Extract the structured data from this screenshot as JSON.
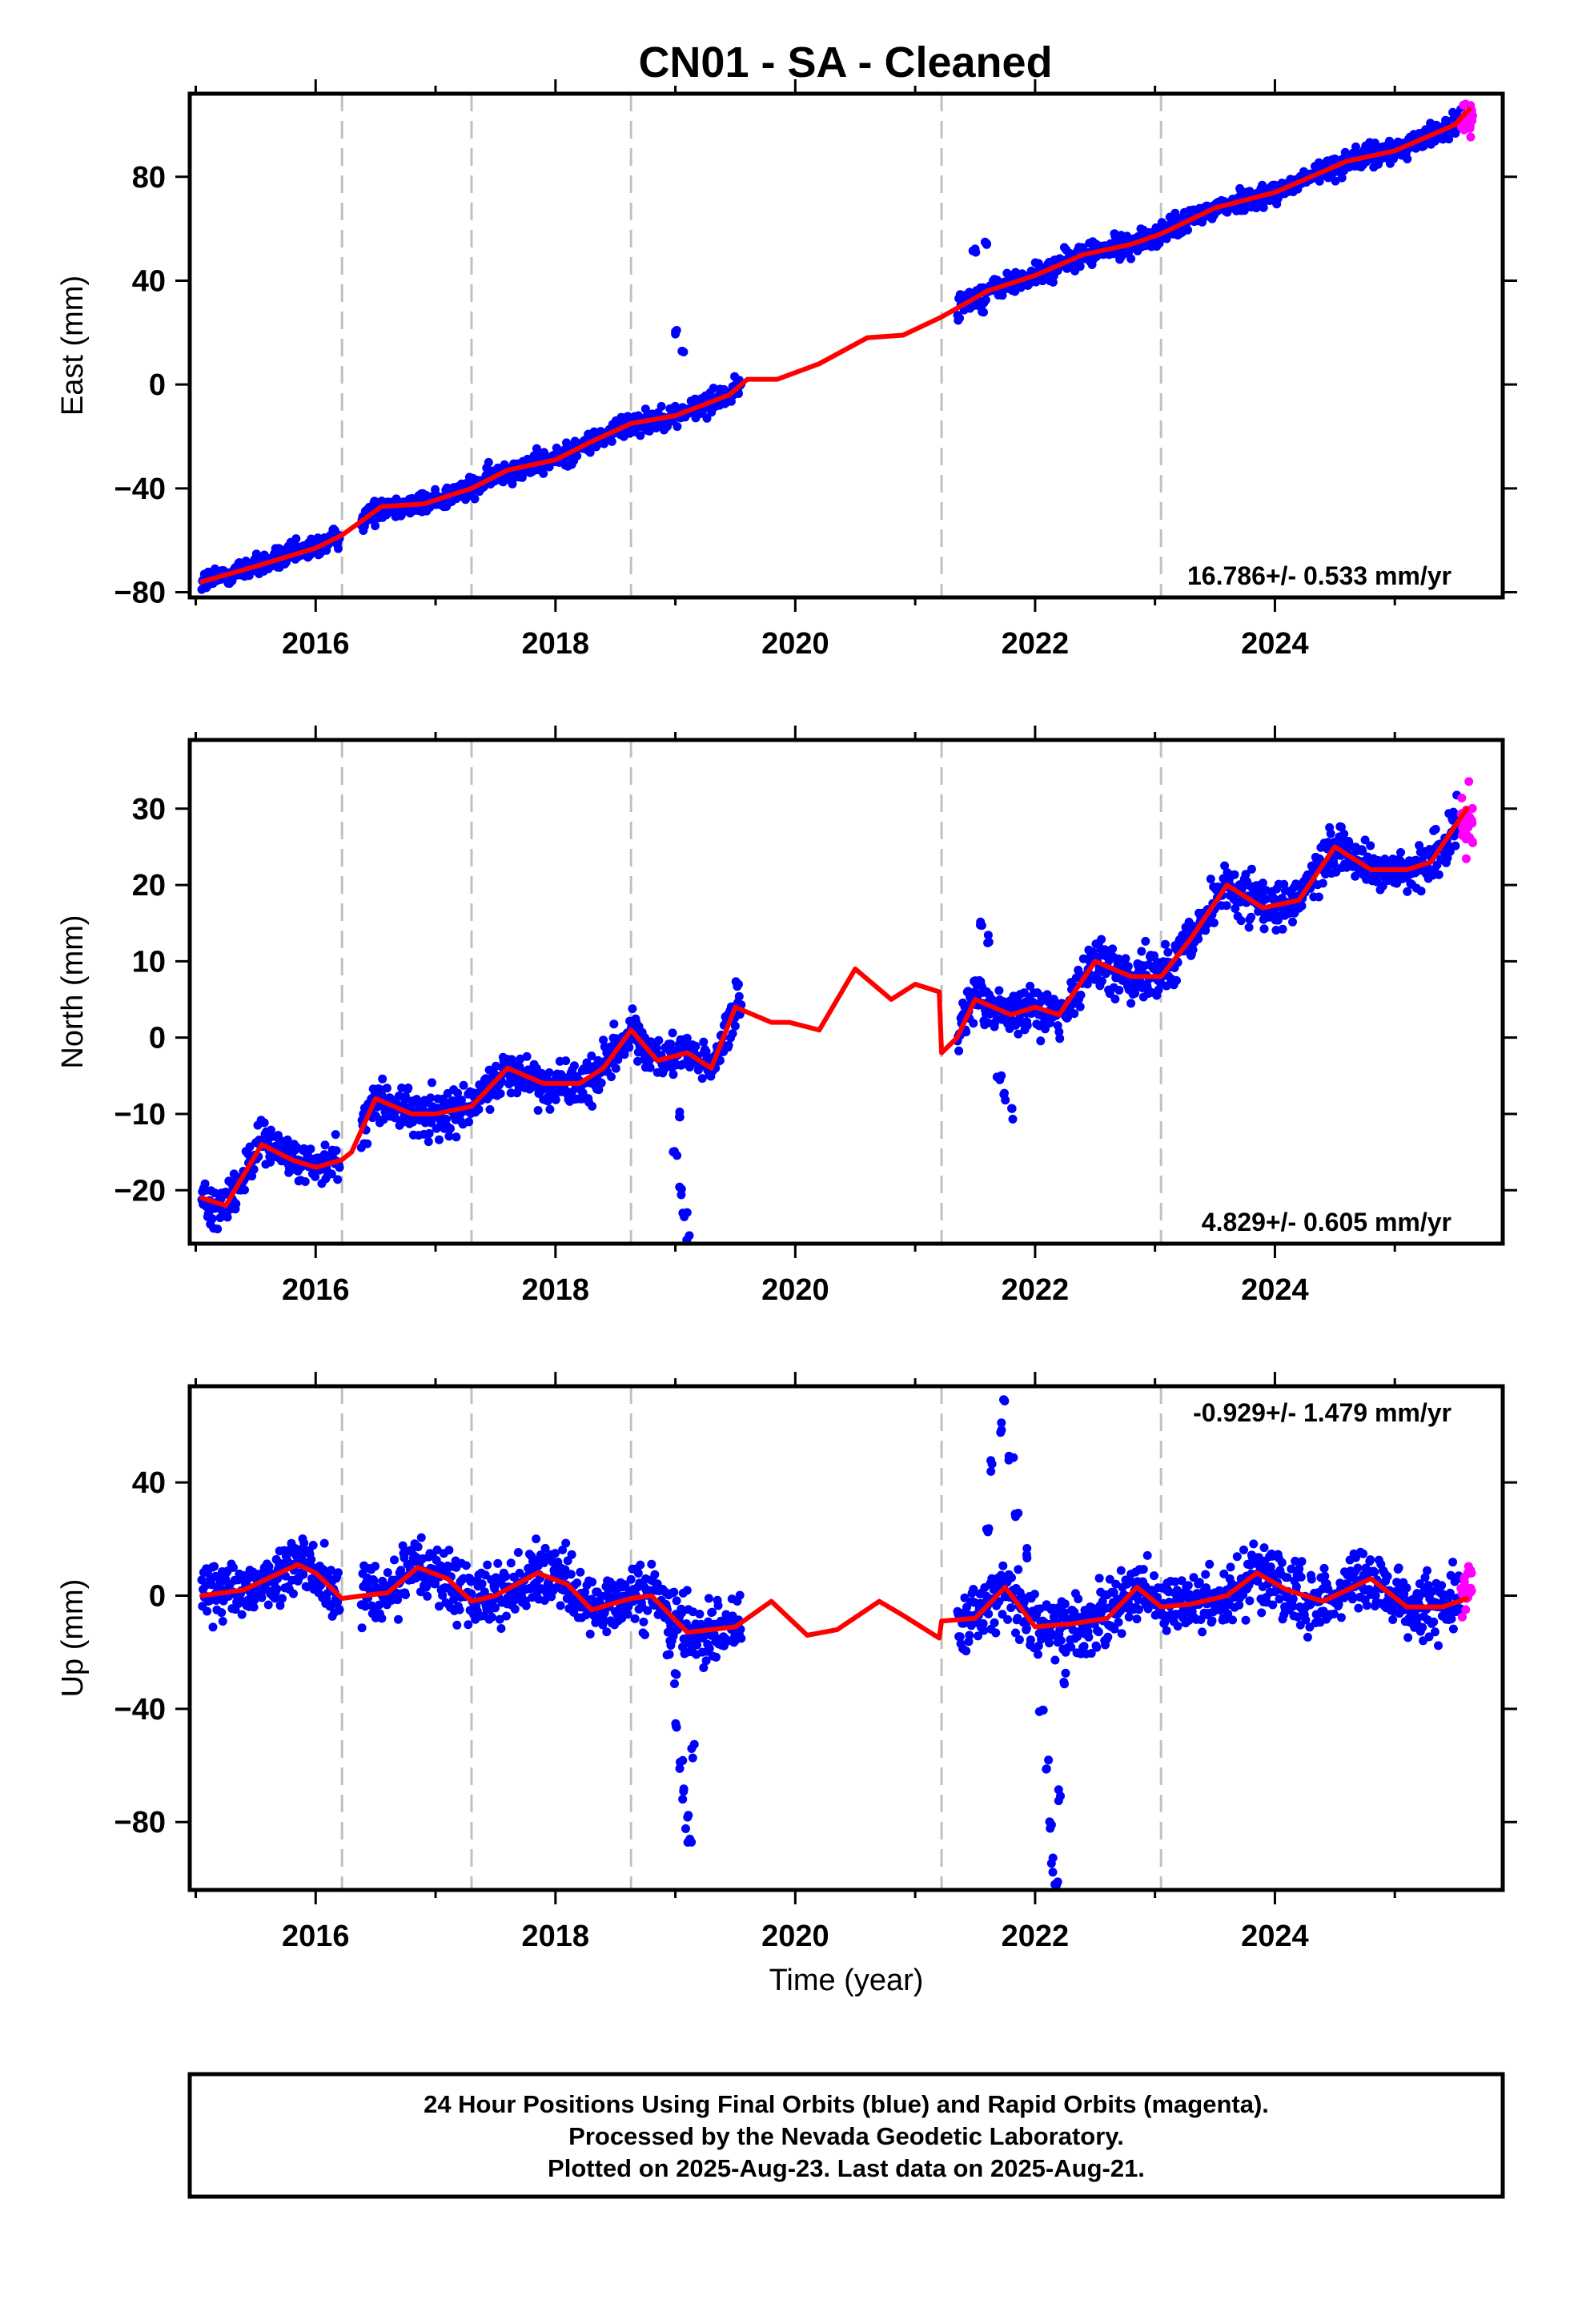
{
  "title": "CN01  - SA - Cleaned",
  "colors": {
    "final_orbits": "#0000ff",
    "rapid_orbits": "#ff00ff",
    "model": "#ff0000",
    "break_lines": "#c0c0c0"
  },
  "chart_data": [
    {
      "type": "scatter",
      "name": "east",
      "ylabel": "East (mm)",
      "xlabel": "",
      "xlim": [
        2014.95,
        2025.9
      ],
      "ylim": [
        -82,
        112
      ],
      "xticks": [
        2016,
        2018,
        2020,
        2022,
        2024
      ],
      "yticks": [
        -80,
        -40,
        0,
        40,
        80
      ],
      "rate_text": "16.786+/- 0.533 mm/yr",
      "rate_position": "bottom-right",
      "breaks": [
        2016.22,
        2017.3,
        2018.63,
        2021.22,
        2023.05
      ],
      "gaps": [
        [
          2016.2,
          2016.38
        ],
        [
          2019.55,
          2021.35
        ]
      ],
      "noise": 2.2,
      "model": [
        [
          2015.05,
          -76
        ],
        [
          2015.5,
          -70
        ],
        [
          2016.0,
          -63
        ],
        [
          2016.22,
          -58
        ],
        [
          2016.4,
          -52
        ],
        [
          2016.55,
          -47
        ],
        [
          2016.9,
          -46
        ],
        [
          2017.3,
          -40
        ],
        [
          2017.6,
          -33
        ],
        [
          2018.0,
          -29
        ],
        [
          2018.3,
          -22
        ],
        [
          2018.63,
          -15
        ],
        [
          2019.0,
          -12
        ],
        [
          2019.45,
          -4
        ],
        [
          2019.6,
          2
        ],
        [
          2019.85,
          2
        ],
        [
          2020.2,
          8
        ],
        [
          2020.6,
          18
        ],
        [
          2020.9,
          19
        ],
        [
          2021.22,
          26
        ],
        [
          2021.45,
          32
        ],
        [
          2021.6,
          36
        ],
        [
          2022.0,
          42
        ],
        [
          2022.4,
          50
        ],
        [
          2022.8,
          54
        ],
        [
          2023.05,
          58
        ],
        [
          2023.5,
          68
        ],
        [
          2024.0,
          74
        ],
        [
          2024.6,
          86
        ],
        [
          2025.0,
          90
        ],
        [
          2025.5,
          100
        ],
        [
          2025.62,
          106
        ]
      ],
      "spikes": [
        [
          2019.0,
          20
        ],
        [
          2019.05,
          12
        ],
        [
          2021.5,
          52
        ],
        [
          2021.6,
          54
        ],
        [
          2021.55,
          28
        ]
      ],
      "rapid": {
        "x0": 2025.55,
        "x1": 2025.65,
        "center": 102,
        "spread": 6
      }
    },
    {
      "type": "scatter",
      "name": "north",
      "ylabel": "North (mm)",
      "xlabel": "",
      "xlim": [
        2014.95,
        2025.9
      ],
      "ylim": [
        -27,
        39
      ],
      "xticks": [
        2016,
        2018,
        2020,
        2022,
        2024
      ],
      "yticks": [
        -20,
        -10,
        0,
        10,
        20,
        30
      ],
      "rate_text": "4.829+/- 0.605 mm/yr",
      "rate_position": "bottom-right",
      "breaks": [
        2016.22,
        2017.3,
        2018.63,
        2021.22,
        2023.05
      ],
      "gaps": [
        [
          2016.2,
          2016.38
        ],
        [
          2019.55,
          2021.35
        ]
      ],
      "noise": 1.5,
      "model": [
        [
          2015.05,
          -21
        ],
        [
          2015.25,
          -22
        ],
        [
          2015.55,
          -14
        ],
        [
          2015.8,
          -16
        ],
        [
          2016.0,
          -17
        ],
        [
          2016.22,
          -16
        ],
        [
          2016.3,
          -15
        ],
        [
          2016.5,
          -8
        ],
        [
          2016.8,
          -10
        ],
        [
          2017.0,
          -10
        ],
        [
          2017.3,
          -9
        ],
        [
          2017.6,
          -4
        ],
        [
          2017.9,
          -6
        ],
        [
          2018.2,
          -6
        ],
        [
          2018.4,
          -4
        ],
        [
          2018.63,
          1
        ],
        [
          2018.85,
          -3
        ],
        [
          2019.1,
          -2
        ],
        [
          2019.3,
          -4
        ],
        [
          2019.5,
          4
        ],
        [
          2019.8,
          2
        ],
        [
          2019.95,
          2
        ],
        [
          2020.2,
          1
        ],
        [
          2020.5,
          9
        ],
        [
          2020.8,
          5
        ],
        [
          2021.0,
          7
        ],
        [
          2021.2,
          6
        ],
        [
          2021.22,
          -2
        ],
        [
          2021.35,
          0
        ],
        [
          2021.5,
          5
        ],
        [
          2021.8,
          3
        ],
        [
          2022.0,
          4
        ],
        [
          2022.2,
          3
        ],
        [
          2022.5,
          10
        ],
        [
          2022.8,
          8
        ],
        [
          2023.05,
          8
        ],
        [
          2023.3,
          13
        ],
        [
          2023.6,
          20
        ],
        [
          2023.9,
          17
        ],
        [
          2024.2,
          18
        ],
        [
          2024.5,
          25
        ],
        [
          2024.8,
          22
        ],
        [
          2025.1,
          22
        ],
        [
          2025.3,
          23
        ],
        [
          2025.6,
          30
        ]
      ],
      "spikes": [
        [
          2019.05,
          -20
        ],
        [
          2019.08,
          -23
        ],
        [
          2019.1,
          -26
        ],
        [
          2019.0,
          -15
        ],
        [
          2019.03,
          -10
        ],
        [
          2021.55,
          15
        ],
        [
          2021.6,
          13
        ],
        [
          2021.7,
          -5
        ],
        [
          2021.75,
          -8
        ],
        [
          2021.8,
          -10
        ]
      ],
      "rapid": {
        "x0": 2025.55,
        "x1": 2025.65,
        "center": 28,
        "spread": 5
      }
    },
    {
      "type": "scatter",
      "name": "up",
      "ylabel": "Up (mm)",
      "xlabel": "Time (year)",
      "xlim": [
        2014.95,
        2025.9
      ],
      "ylim": [
        -104,
        74
      ],
      "xticks": [
        2016,
        2018,
        2020,
        2022,
        2024
      ],
      "yticks": [
        -80,
        -40,
        0,
        40
      ],
      "rate_text": "-0.929+/- 1.479 mm/yr",
      "rate_position": "top-right",
      "breaks": [
        2016.22,
        2017.3,
        2018.63,
        2021.22,
        2023.05
      ],
      "gaps": [
        [
          2016.2,
          2016.38
        ],
        [
          2019.55,
          2021.35
        ]
      ],
      "noise": 5.5,
      "model": [
        [
          2015.05,
          0
        ],
        [
          2015.4,
          2
        ],
        [
          2015.85,
          11
        ],
        [
          2016.0,
          8
        ],
        [
          2016.22,
          -1
        ],
        [
          2016.4,
          0
        ],
        [
          2016.6,
          1
        ],
        [
          2016.85,
          10
        ],
        [
          2017.1,
          6
        ],
        [
          2017.3,
          -2
        ],
        [
          2017.5,
          0
        ],
        [
          2017.85,
          8
        ],
        [
          2018.1,
          4
        ],
        [
          2018.3,
          -5
        ],
        [
          2018.63,
          -1
        ],
        [
          2018.8,
          0
        ],
        [
          2019.1,
          -13
        ],
        [
          2019.5,
          -11
        ],
        [
          2019.8,
          -2
        ],
        [
          2020.1,
          -14
        ],
        [
          2020.35,
          -12
        ],
        [
          2020.7,
          -2
        ],
        [
          2020.9,
          -7
        ],
        [
          2021.2,
          -15
        ],
        [
          2021.22,
          -9
        ],
        [
          2021.5,
          -8
        ],
        [
          2021.75,
          3
        ],
        [
          2022.0,
          -11
        ],
        [
          2022.3,
          -10
        ],
        [
          2022.6,
          -8
        ],
        [
          2022.85,
          3
        ],
        [
          2023.05,
          -4
        ],
        [
          2023.3,
          -3
        ],
        [
          2023.6,
          0
        ],
        [
          2023.85,
          8
        ],
        [
          2024.1,
          2
        ],
        [
          2024.4,
          -2
        ],
        [
          2024.8,
          6
        ],
        [
          2025.1,
          -4
        ],
        [
          2025.4,
          -4
        ],
        [
          2025.6,
          -1
        ]
      ],
      "spikes": [
        [
          2019.0,
          -30
        ],
        [
          2019.02,
          -45
        ],
        [
          2019.05,
          -60
        ],
        [
          2019.08,
          -70
        ],
        [
          2019.1,
          -80
        ],
        [
          2019.12,
          -88
        ],
        [
          2019.15,
          -55
        ],
        [
          2018.95,
          -20
        ],
        [
          2021.65,
          45
        ],
        [
          2021.7,
          60
        ],
        [
          2021.75,
          70
        ],
        [
          2021.8,
          50
        ],
        [
          2021.85,
          30
        ],
        [
          2021.6,
          25
        ],
        [
          2021.95,
          15
        ],
        [
          2022.05,
          -40
        ],
        [
          2022.1,
          -60
        ],
        [
          2022.12,
          -80
        ],
        [
          2022.15,
          -95
        ],
        [
          2022.18,
          -100
        ],
        [
          2022.2,
          -70
        ],
        [
          2022.25,
          -30
        ]
      ],
      "rapid": {
        "x0": 2025.55,
        "x1": 2025.65,
        "center": 2,
        "spread": 8
      }
    }
  ],
  "footer": {
    "line1": "24 Hour Positions Using Final Orbits (blue) and Rapid Orbits (magenta).",
    "line2": "Processed by the Nevada Geodetic Laboratory.",
    "line3": "Plotted on 2025-Aug-23. Last data on 2025-Aug-21."
  }
}
